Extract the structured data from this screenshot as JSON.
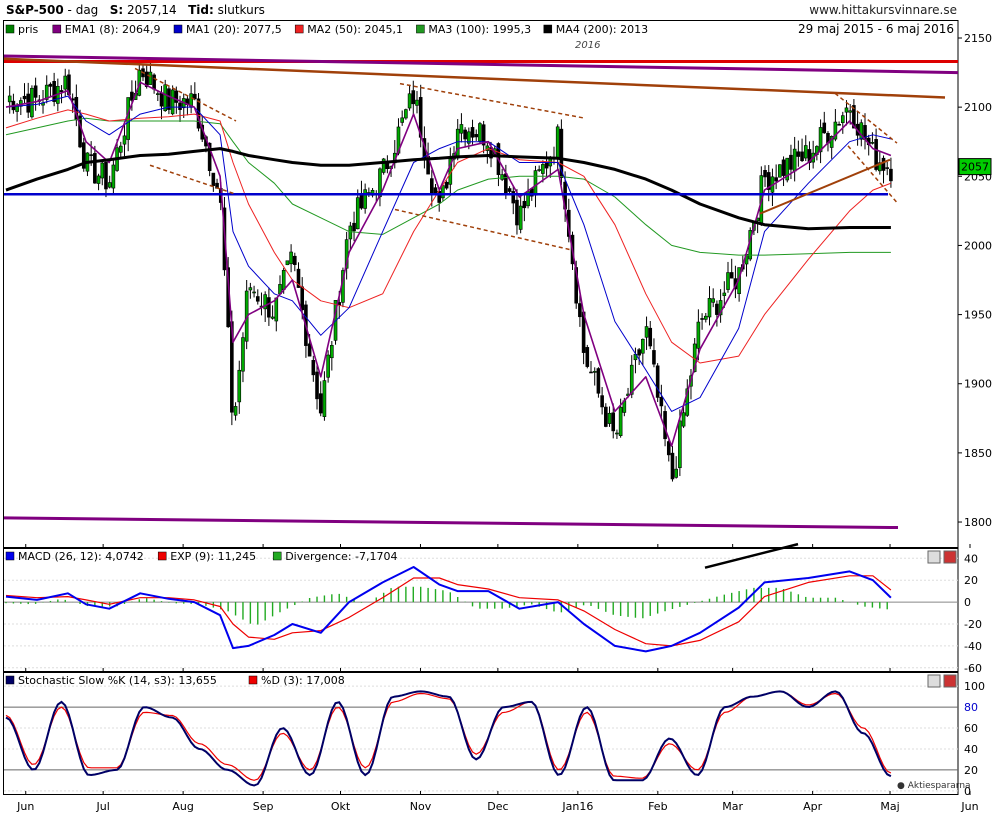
{
  "header": {
    "symbol": "S&P-500",
    "sep": " - ",
    "period": "dag",
    "last_label": "S:",
    "last_value": "2057,14",
    "type_label": "Tid:",
    "type_value": "slutkurs",
    "site": "www.hittakursvinnare.se",
    "date_range": "29 maj 2015 - 6 maj 2016",
    "year_marker": "2016",
    "current_price": "2057",
    "watermark": "Aktiespararna"
  },
  "colors": {
    "price": "#008000",
    "ema": "#800080",
    "ma20": "#0000cc",
    "ma50": "#ee2222",
    "ma100": "#229922",
    "ma200": "#000000",
    "macd": "#0000ee",
    "signal": "#ee0000",
    "divergence": "#22aa22",
    "stoch_k": "#000066",
    "stoch_d": "#ee0000",
    "trend_purple": "#800080",
    "trend_brown": "#a0400a",
    "support_blue": "#0000cc",
    "resist_red": "#dd0000"
  },
  "chart_data": [
    {
      "type": "candlestick",
      "title": "S&P-500",
      "ylim": [
        1780,
        2150
      ],
      "yticks": [
        1800,
        1850,
        1900,
        1950,
        2000,
        2050,
        2100,
        2150
      ],
      "xticks": [
        "Jun",
        "Jul",
        "Aug",
        "Sep",
        "Okt",
        "Nov",
        "Dec",
        "Jan16",
        "Feb",
        "Mar",
        "Apr",
        "Maj",
        "Jun"
      ],
      "legend": [
        {
          "label": "pris",
          "color": "#008000"
        },
        {
          "label": "EMA1 (8): 2064,9",
          "color": "#800080"
        },
        {
          "label": "MA1 (20): 2077,5",
          "color": "#0000cc"
        },
        {
          "label": "MA2 (50): 2045,1",
          "color": "#ee2222"
        },
        {
          "label": "MA3 (100): 1995,3",
          "color": "#229922"
        },
        {
          "label": "MA4 (200): 2013",
          "color": "#000000"
        }
      ],
      "close_series": [
        {
          "date": "2015-05-29",
          "close": 2107
        },
        {
          "date": "2015-06-10",
          "close": 2105
        },
        {
          "date": "2015-06-22",
          "close": 2120
        },
        {
          "date": "2015-06-29",
          "close": 2058
        },
        {
          "date": "2015-07-08",
          "close": 2046
        },
        {
          "date": "2015-07-20",
          "close": 2128
        },
        {
          "date": "2015-07-31",
          "close": 2104
        },
        {
          "date": "2015-08-10",
          "close": 2104
        },
        {
          "date": "2015-08-20",
          "close": 2035
        },
        {
          "date": "2015-08-25",
          "close": 1868
        },
        {
          "date": "2015-08-31",
          "close": 1972
        },
        {
          "date": "2015-09-10",
          "close": 1952
        },
        {
          "date": "2015-09-17",
          "close": 1990
        },
        {
          "date": "2015-09-28",
          "close": 1881
        },
        {
          "date": "2015-10-09",
          "close": 2014
        },
        {
          "date": "2015-10-22",
          "close": 2052
        },
        {
          "date": "2015-11-03",
          "close": 2109
        },
        {
          "date": "2015-11-13",
          "close": 2023
        },
        {
          "date": "2015-11-20",
          "close": 2089
        },
        {
          "date": "2015-12-02",
          "close": 2079
        },
        {
          "date": "2015-12-14",
          "close": 2021
        },
        {
          "date": "2015-12-29",
          "close": 2078
        },
        {
          "date": "2016-01-08",
          "close": 1922
        },
        {
          "date": "2016-01-20",
          "close": 1859
        },
        {
          "date": "2016-02-01",
          "close": 1940
        },
        {
          "date": "2016-02-11",
          "close": 1829
        },
        {
          "date": "2016-02-22",
          "close": 1945
        },
        {
          "date": "2016-03-08",
          "close": 1979
        },
        {
          "date": "2016-03-18",
          "close": 2049
        },
        {
          "date": "2016-04-04",
          "close": 2066
        },
        {
          "date": "2016-04-20",
          "close": 2102
        },
        {
          "date": "2016-04-29",
          "close": 2065
        },
        {
          "date": "2016-05-06",
          "close": 2057
        }
      ],
      "ema8": [
        2100,
        2104,
        2112,
        2075,
        2060,
        2118,
        2108,
        2100,
        2050,
        1930,
        1950,
        1960,
        1975,
        1905,
        1995,
        2040,
        2095,
        2040,
        2070,
        2075,
        2035,
        2055,
        1950,
        1880,
        1905,
        1855,
        1925,
        1975,
        2040,
        2060,
        2090,
        2070,
        2065
      ],
      "ma20": [
        2100,
        2102,
        2108,
        2090,
        2080,
        2095,
        2100,
        2100,
        2080,
        2010,
        1985,
        1965,
        1960,
        1935,
        1955,
        2010,
        2060,
        2070,
        2075,
        2075,
        2060,
        2060,
        2015,
        1945,
        1910,
        1880,
        1890,
        1940,
        2010,
        2045,
        2075,
        2080,
        2077
      ],
      "ma50": [
        2085,
        2092,
        2098,
        2095,
        2090,
        2092,
        2093,
        2095,
        2090,
        2060,
        2030,
        1995,
        1975,
        1960,
        1955,
        1965,
        2010,
        2040,
        2060,
        2070,
        2062,
        2060,
        2050,
        2015,
        1965,
        1930,
        1915,
        1920,
        1950,
        1990,
        2025,
        2040,
        2045
      ],
      "ma100": [
        2080,
        2085,
        2090,
        2092,
        2090,
        2090,
        2090,
        2090,
        2088,
        2075,
        2060,
        2045,
        2030,
        2020,
        2010,
        2008,
        2020,
        2030,
        2040,
        2048,
        2050,
        2050,
        2048,
        2035,
        2015,
        2000,
        1995,
        1993,
        1993,
        1994,
        1995,
        1995,
        1995
      ],
      "ma200": [
        2040,
        2048,
        2055,
        2060,
        2062,
        2065,
        2066,
        2068,
        2070,
        2068,
        2065,
        2062,
        2060,
        2058,
        2058,
        2060,
        2062,
        2063,
        2064,
        2065,
        2064,
        2063,
        2060,
        2055,
        2048,
        2040,
        2030,
        2020,
        2015,
        2012,
        2013,
        2013,
        2013
      ],
      "support_level": 2037
    },
    {
      "type": "line",
      "title": "MACD",
      "ylim": [
        -60,
        40
      ],
      "yticks": [
        -60,
        -40,
        -20,
        0,
        20,
        40
      ],
      "legend": [
        {
          "label": "MACD (26, 12): 4,0742",
          "color": "#0000ee"
        },
        {
          "label": "EXP (9): 11,245",
          "color": "#ee0000"
        },
        {
          "label": "Divergence: -7,1704",
          "color": "#22aa22"
        }
      ],
      "macd": [
        5,
        2,
        8,
        -2,
        -6,
        8,
        3,
        0,
        -12,
        -42,
        -40,
        -30,
        -20,
        -28,
        0,
        18,
        32,
        16,
        10,
        10,
        -6,
        0,
        -20,
        -40,
        -45,
        -40,
        -28,
        -5,
        18,
        22,
        28,
        20,
        4
      ],
      "signal": [
        6,
        4,
        5,
        2,
        -2,
        4,
        4,
        2,
        -4,
        -20,
        -32,
        -34,
        -28,
        -26,
        -14,
        4,
        22,
        22,
        16,
        12,
        4,
        2,
        -8,
        -25,
        -38,
        -40,
        -35,
        -18,
        5,
        18,
        24,
        24,
        11
      ]
    },
    {
      "type": "line",
      "title": "Stochastic Slow",
      "ylim": [
        0,
        105
      ],
      "yticks": [
        0,
        20,
        40,
        60,
        80,
        100
      ],
      "legend": [
        {
          "label": "Stochastic Slow %K (14, s3): 13,655",
          "color": "#000066"
        },
        {
          "label": "%D (3): 17,008",
          "color": "#ee0000"
        }
      ],
      "k": [
        70,
        20,
        85,
        15,
        20,
        80,
        70,
        40,
        20,
        5,
        60,
        15,
        85,
        15,
        90,
        95,
        90,
        30,
        80,
        85,
        15,
        80,
        10,
        10,
        50,
        15,
        80,
        90,
        95,
        80,
        95,
        55,
        14
      ],
      "d": [
        72,
        25,
        80,
        22,
        22,
        75,
        72,
        45,
        25,
        10,
        55,
        20,
        80,
        22,
        85,
        93,
        88,
        35,
        75,
        85,
        20,
        75,
        14,
        12,
        45,
        20,
        75,
        90,
        95,
        82,
        93,
        60,
        17
      ]
    }
  ]
}
